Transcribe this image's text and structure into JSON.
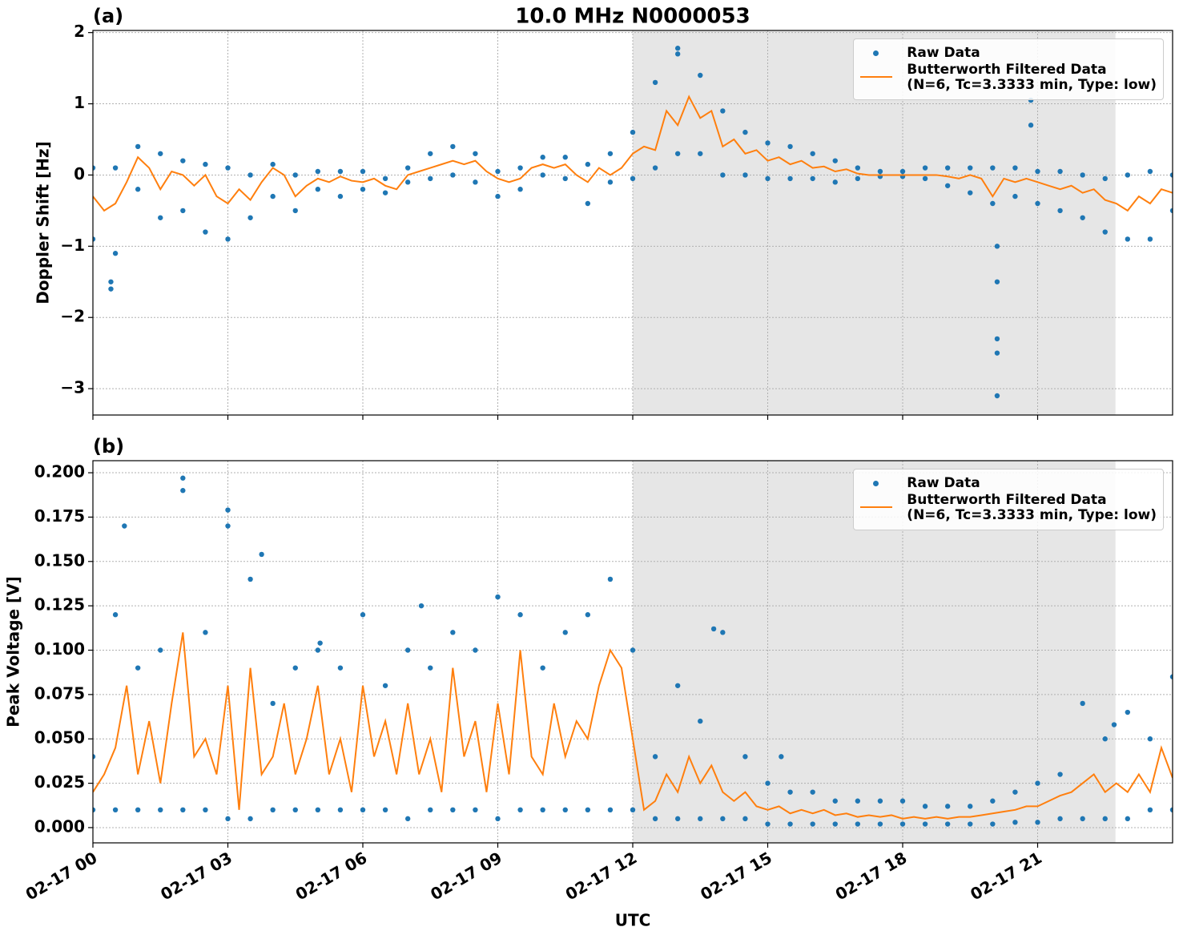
{
  "chart_data": [
    {
      "type": "line",
      "title": "10.0 MHz N0000053",
      "panel_label": "(a)",
      "ylabel": "Doppler Shift [Hz]",
      "xlim": [
        0,
        24
      ],
      "xticks": [
        0,
        3,
        6,
        9,
        12,
        15,
        18,
        21
      ],
      "ylim": [
        -3.37,
        2.03
      ],
      "yticks": [
        {
          "value": -3,
          "label": "−3"
        },
        {
          "value": -2,
          "label": "−2"
        },
        {
          "value": -1,
          "label": "−1"
        },
        0,
        1,
        2
      ],
      "grid": true,
      "shaded_span": [
        12,
        22.73
      ],
      "shade_color": "#e6e6e6",
      "legend": "upper right",
      "series": [
        {
          "name": "Raw Data",
          "kind": "scatter",
          "color": "#1f77b4",
          "x": [
            0,
            0,
            0.5,
            0.5,
            1,
            1,
            1.5,
            1.5,
            2,
            2,
            2.5,
            2.5,
            3,
            3,
            3.5,
            3.5,
            4,
            4,
            4.5,
            4.5,
            5,
            5,
            5.5,
            5.5,
            6,
            6,
            6.5,
            6.5,
            7,
            7,
            7.5,
            7.5,
            8,
            8,
            8.5,
            8.5,
            9,
            9,
            9.5,
            9.5,
            10,
            10,
            10.5,
            10.5,
            11,
            11,
            11.5,
            11.5,
            12,
            12,
            12.5,
            12.5,
            13,
            13,
            13.5,
            13.5,
            14,
            14,
            14.5,
            14.5,
            15,
            15,
            15.5,
            15.5,
            16,
            16,
            16.5,
            16.5,
            17,
            17,
            17.5,
            17.5,
            18,
            18,
            18.5,
            18.5,
            19,
            19,
            19.5,
            19.5,
            20,
            20,
            20.5,
            20.5,
            21,
            21,
            21.5,
            21.5,
            22,
            22,
            22.5,
            22.5,
            23,
            23,
            23.5,
            23.5,
            24,
            24,
            0.4,
            0.4,
            20.1,
            20.1,
            20.1,
            20.1,
            20.1,
            20.85,
            20.85,
            13.0
          ],
          "values": [
            -0.9,
            0.1,
            -1.1,
            0.1,
            -0.2,
            0.4,
            -0.6,
            0.3,
            -0.5,
            0.2,
            -0.8,
            0.15,
            -0.9,
            0.1,
            -0.6,
            0.0,
            -0.3,
            0.15,
            -0.5,
            0.0,
            -0.2,
            0.05,
            -0.3,
            0.05,
            -0.2,
            0.05,
            -0.25,
            -0.05,
            -0.1,
            0.1,
            -0.05,
            0.3,
            0.0,
            0.4,
            -0.1,
            0.3,
            -0.3,
            0.05,
            -0.2,
            0.1,
            0.0,
            0.25,
            -0.05,
            0.25,
            -0.4,
            0.15,
            -0.1,
            0.3,
            -0.05,
            0.6,
            0.1,
            1.3,
            0.3,
            1.7,
            0.3,
            1.4,
            0.0,
            0.9,
            0.0,
            0.6,
            -0.05,
            0.45,
            -0.05,
            0.4,
            -0.05,
            0.3,
            -0.1,
            0.2,
            -0.05,
            0.1,
            -0.02,
            0.05,
            -0.02,
            0.05,
            -0.05,
            0.1,
            -0.15,
            0.1,
            -0.25,
            0.1,
            -0.4,
            0.1,
            -0.3,
            0.1,
            -0.4,
            0.05,
            -0.5,
            0.05,
            -0.6,
            0.0,
            -0.8,
            -0.05,
            -0.9,
            0.0,
            -0.9,
            0.05,
            -0.5,
            0.0,
            -1.6,
            -1.5,
            -3.1,
            -2.5,
            -2.3,
            -1.5,
            -1.0,
            1.05,
            0.7,
            1.78
          ]
        },
        {
          "name": "Butterworth Filtered Data\n(N=6, Tc=3.3333 min, Type: low)",
          "kind": "line",
          "color": "#ff7f0e",
          "x": [
            0,
            0.25,
            0.5,
            0.75,
            1,
            1.25,
            1.5,
            1.75,
            2,
            2.25,
            2.5,
            2.75,
            3,
            3.25,
            3.5,
            3.75,
            4,
            4.25,
            4.5,
            4.75,
            5,
            5.25,
            5.5,
            5.75,
            6,
            6.25,
            6.5,
            6.75,
            7,
            7.25,
            7.5,
            7.75,
            8,
            8.25,
            8.5,
            8.75,
            9,
            9.25,
            9.5,
            9.75,
            10,
            10.25,
            10.5,
            10.75,
            11,
            11.25,
            11.5,
            11.75,
            12,
            12.25,
            12.5,
            12.75,
            13,
            13.25,
            13.5,
            13.75,
            14,
            14.25,
            14.5,
            14.75,
            15,
            15.25,
            15.5,
            15.75,
            16,
            16.25,
            16.5,
            16.75,
            17,
            17.25,
            17.5,
            17.75,
            18,
            18.25,
            18.5,
            18.75,
            19,
            19.25,
            19.5,
            19.75,
            20,
            20.25,
            20.5,
            20.75,
            21,
            21.25,
            21.5,
            21.75,
            22,
            22.25,
            22.5,
            22.75,
            23,
            23.25,
            23.5,
            23.75,
            24
          ],
          "values": [
            -0.3,
            -0.5,
            -0.4,
            -0.1,
            0.25,
            0.1,
            -0.2,
            0.05,
            0.0,
            -0.15,
            0.0,
            -0.3,
            -0.4,
            -0.2,
            -0.35,
            -0.1,
            0.1,
            0.0,
            -0.3,
            -0.15,
            -0.05,
            -0.1,
            -0.02,
            -0.08,
            -0.1,
            -0.05,
            -0.15,
            -0.2,
            0.0,
            0.05,
            0.1,
            0.15,
            0.2,
            0.15,
            0.2,
            0.05,
            -0.05,
            -0.1,
            -0.05,
            0.1,
            0.15,
            0.1,
            0.15,
            0.0,
            -0.1,
            0.1,
            0.0,
            0.1,
            0.3,
            0.4,
            0.35,
            0.9,
            0.7,
            1.1,
            0.8,
            0.9,
            0.4,
            0.5,
            0.3,
            0.35,
            0.2,
            0.25,
            0.15,
            0.2,
            0.1,
            0.12,
            0.05,
            0.08,
            0.02,
            0.0,
            0.0,
            0.0,
            0.0,
            0.0,
            0.0,
            0.0,
            -0.02,
            -0.05,
            0.0,
            -0.05,
            -0.3,
            -0.05,
            -0.1,
            -0.05,
            -0.1,
            -0.15,
            -0.2,
            -0.15,
            -0.25,
            -0.2,
            -0.35,
            -0.4,
            -0.5,
            -0.3,
            -0.4,
            -0.2,
            -0.25
          ]
        }
      ]
    },
    {
      "type": "line",
      "panel_label": "(b)",
      "ylabel": "Peak Voltage [V]",
      "xlabel": "UTC",
      "xlim": [
        0,
        24
      ],
      "xticks": [
        {
          "value": 0,
          "label": "02-17 00"
        },
        {
          "value": 3,
          "label": "02-17 03"
        },
        {
          "value": 6,
          "label": "02-17 06"
        },
        {
          "value": 9,
          "label": "02-17 09"
        },
        {
          "value": 12,
          "label": "02-17 12"
        },
        {
          "value": 15,
          "label": "02-17 15"
        },
        {
          "value": 18,
          "label": "02-17 18"
        },
        {
          "value": 21,
          "label": "02-17 21"
        }
      ],
      "ylim": [
        -0.0086,
        0.2068
      ],
      "yticks": [
        {
          "value": 0,
          "label": "0.000"
        },
        {
          "value": 0.025,
          "label": "0.025"
        },
        {
          "value": 0.05,
          "label": "0.050"
        },
        {
          "value": 0.075,
          "label": "0.075"
        },
        {
          "value": 0.1,
          "label": "0.100"
        },
        {
          "value": 0.125,
          "label": "0.125"
        },
        {
          "value": 0.15,
          "label": "0.150"
        },
        {
          "value": 0.175,
          "label": "0.175"
        },
        {
          "value": 0.2,
          "label": "0.200"
        }
      ],
      "grid": true,
      "shaded_span": [
        12,
        22.73
      ],
      "shade_color": "#e6e6e6",
      "legend": "upper right",
      "series": [
        {
          "name": "Raw Data",
          "kind": "scatter",
          "color": "#1f77b4",
          "x": [
            0,
            0,
            0.5,
            0.5,
            1,
            1,
            1.5,
            1.5,
            2,
            2,
            2.5,
            2.5,
            3,
            3,
            3.5,
            3.5,
            4,
            4,
            4.5,
            4.5,
            5,
            5,
            5.5,
            5.5,
            6,
            6,
            6.5,
            6.5,
            7,
            7,
            7.5,
            7.5,
            8,
            8,
            8.5,
            8.5,
            9,
            9,
            9.5,
            9.5,
            10,
            10,
            10.5,
            10.5,
            11,
            11,
            11.5,
            11.5,
            12,
            12,
            12.5,
            12.5,
            13,
            13,
            13.5,
            13.5,
            14,
            14,
            14.5,
            14.5,
            15,
            15,
            15.5,
            15.5,
            16,
            16,
            16.5,
            16.5,
            17,
            17,
            17.5,
            17.5,
            18,
            18,
            18.5,
            18.5,
            19,
            19,
            19.5,
            19.5,
            20,
            20,
            20.5,
            20.5,
            21,
            21,
            21.5,
            21.5,
            22,
            22,
            22.5,
            22.5,
            23,
            23,
            23.5,
            23.5,
            24,
            24,
            2.0,
            0.7,
            3.0,
            3.75,
            13.8,
            15.3,
            22.7,
            7.3,
            5.05
          ],
          "values": [
            0.01,
            0.04,
            0.01,
            0.12,
            0.01,
            0.09,
            0.01,
            0.1,
            0.01,
            0.19,
            0.01,
            0.11,
            0.005,
            0.17,
            0.005,
            0.14,
            0.01,
            0.07,
            0.01,
            0.09,
            0.01,
            0.1,
            0.01,
            0.09,
            0.01,
            0.12,
            0.01,
            0.08,
            0.005,
            0.1,
            0.01,
            0.09,
            0.01,
            0.11,
            0.01,
            0.1,
            0.005,
            0.13,
            0.01,
            0.12,
            0.01,
            0.09,
            0.01,
            0.11,
            0.01,
            0.12,
            0.01,
            0.14,
            0.01,
            0.1,
            0.005,
            0.04,
            0.005,
            0.08,
            0.005,
            0.06,
            0.005,
            0.11,
            0.005,
            0.04,
            0.002,
            0.025,
            0.002,
            0.02,
            0.002,
            0.02,
            0.002,
            0.015,
            0.002,
            0.015,
            0.002,
            0.015,
            0.002,
            0.015,
            0.002,
            0.012,
            0.002,
            0.012,
            0.002,
            0.012,
            0.002,
            0.015,
            0.003,
            0.02,
            0.003,
            0.025,
            0.005,
            0.03,
            0.005,
            0.07,
            0.005,
            0.05,
            0.005,
            0.065,
            0.01,
            0.05,
            0.01,
            0.085,
            0.197,
            0.17,
            0.179,
            0.154,
            0.112,
            0.04,
            0.058,
            0.125,
            0.104
          ]
        },
        {
          "name": "Butterworth Filtered Data\n(N=6, Tc=3.3333 min, Type: low)",
          "kind": "line",
          "color": "#ff7f0e",
          "x": [
            0,
            0.25,
            0.5,
            0.75,
            1,
            1.25,
            1.5,
            1.75,
            2,
            2.25,
            2.5,
            2.75,
            3,
            3.25,
            3.5,
            3.75,
            4,
            4.25,
            4.5,
            4.75,
            5,
            5.25,
            5.5,
            5.75,
            6,
            6.25,
            6.5,
            6.75,
            7,
            7.25,
            7.5,
            7.75,
            8,
            8.25,
            8.5,
            8.75,
            9,
            9.25,
            9.5,
            9.75,
            10,
            10.25,
            10.5,
            10.75,
            11,
            11.25,
            11.5,
            11.75,
            12,
            12.25,
            12.5,
            12.75,
            13,
            13.25,
            13.5,
            13.75,
            14,
            14.25,
            14.5,
            14.75,
            15,
            15.25,
            15.5,
            15.75,
            16,
            16.25,
            16.5,
            16.75,
            17,
            17.25,
            17.5,
            17.75,
            18,
            18.25,
            18.5,
            18.75,
            19,
            19.25,
            19.5,
            19.75,
            20,
            20.25,
            20.5,
            20.75,
            21,
            21.25,
            21.5,
            21.75,
            22,
            22.25,
            22.5,
            22.75,
            23,
            23.25,
            23.5,
            23.75,
            24
          ],
          "values": [
            0.02,
            0.03,
            0.045,
            0.08,
            0.03,
            0.06,
            0.025,
            0.07,
            0.11,
            0.04,
            0.05,
            0.03,
            0.08,
            0.01,
            0.09,
            0.03,
            0.04,
            0.07,
            0.03,
            0.05,
            0.08,
            0.03,
            0.05,
            0.02,
            0.08,
            0.04,
            0.06,
            0.03,
            0.07,
            0.03,
            0.05,
            0.02,
            0.09,
            0.04,
            0.06,
            0.02,
            0.07,
            0.03,
            0.1,
            0.04,
            0.03,
            0.07,
            0.04,
            0.06,
            0.05,
            0.08,
            0.1,
            0.09,
            0.05,
            0.01,
            0.015,
            0.03,
            0.02,
            0.04,
            0.025,
            0.035,
            0.02,
            0.015,
            0.02,
            0.012,
            0.01,
            0.012,
            0.008,
            0.01,
            0.008,
            0.01,
            0.007,
            0.008,
            0.006,
            0.007,
            0.006,
            0.007,
            0.005,
            0.006,
            0.005,
            0.006,
            0.005,
            0.006,
            0.006,
            0.007,
            0.008,
            0.009,
            0.01,
            0.012,
            0.012,
            0.015,
            0.018,
            0.02,
            0.025,
            0.03,
            0.02,
            0.025,
            0.02,
            0.03,
            0.02,
            0.045,
            0.028
          ]
        }
      ]
    }
  ]
}
